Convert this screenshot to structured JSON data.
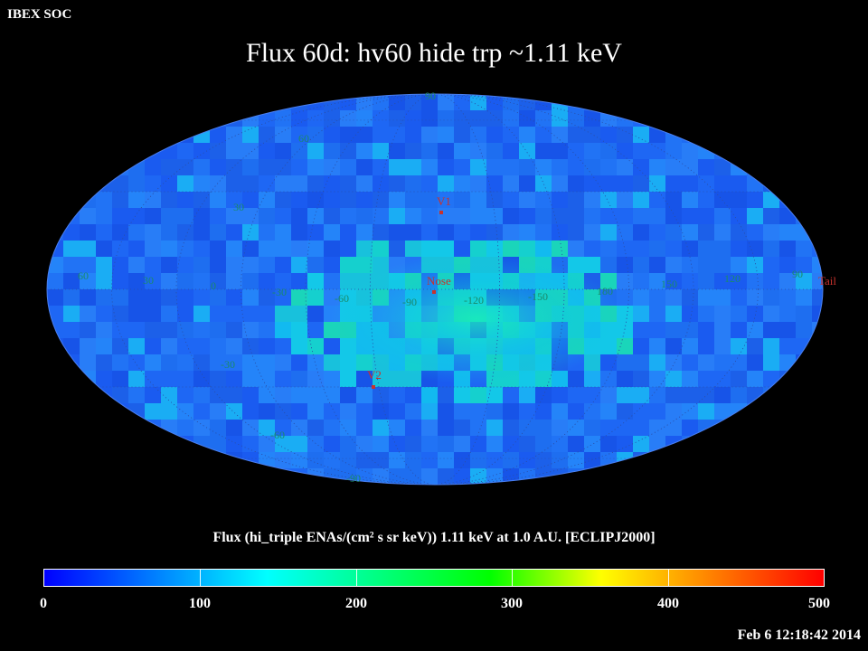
{
  "header": {
    "org": "IBEX SOC",
    "title": "Flux   60d: hv60 hide trp ~1.11 keV"
  },
  "map": {
    "projection": "Aitoff/Hammer all-sky (ecliptic)",
    "coordinate_labels": {
      "latitudes": [
        "60",
        "30",
        "0",
        "-30",
        "-60"
      ],
      "longitudes": [
        "60",
        "30",
        "0",
        "-30",
        "-60",
        "-90",
        "-120",
        "-150",
        "180",
        "150",
        "120",
        "90"
      ],
      "poles": [
        "90",
        "-90"
      ]
    },
    "markers": [
      {
        "label": "V1",
        "color": "#c8322d"
      },
      {
        "label": "Nose",
        "color": "#c8322d"
      },
      {
        "label": "V2",
        "color": "#c8322d"
      },
      {
        "label": "Tail",
        "color": "#c8322d"
      }
    ],
    "grid_label_color": "#1a8a6a"
  },
  "colorbar": {
    "title": "Flux (hi_triple ENAs/(cm² s sr keV))  1.11 keV at 1.0 A.U. [ECLIPJ2000]",
    "ticks": [
      "0",
      "100",
      "200",
      "300",
      "400",
      "500"
    ],
    "min": 0,
    "max": 500,
    "colors": [
      "#0000ff",
      "#0080ff",
      "#00ffff",
      "#00ff80",
      "#00ff00",
      "#ffff00",
      "#ff8000",
      "#ff0000"
    ]
  },
  "footer": {
    "timestamp": "Feb  6 12:18:42 2014"
  }
}
